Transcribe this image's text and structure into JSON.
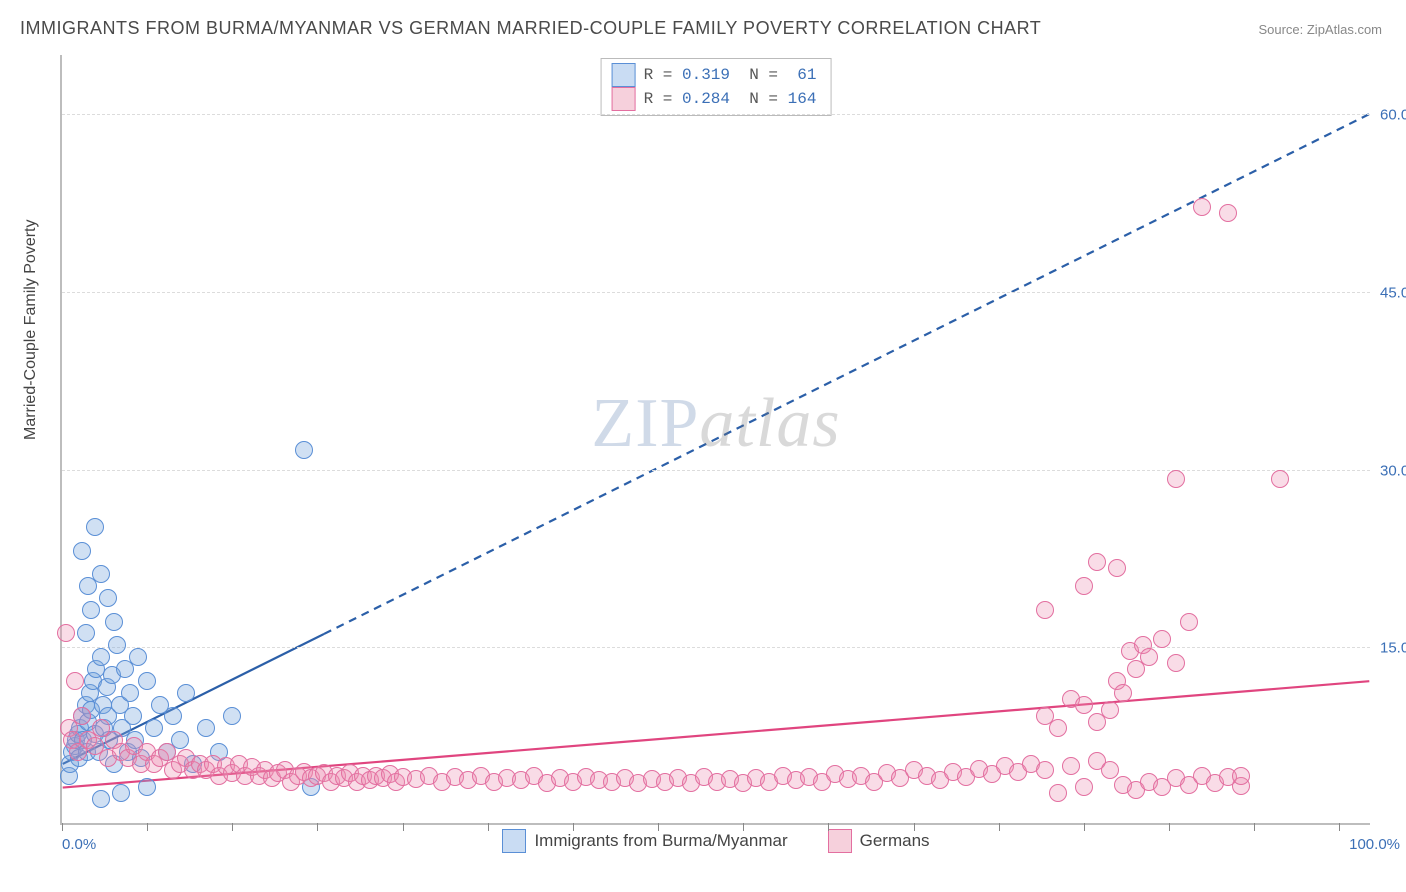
{
  "title": "IMMIGRANTS FROM BURMA/MYANMAR VS GERMAN MARRIED-COUPLE FAMILY POVERTY CORRELATION CHART",
  "source_label": "Source: ZipAtlas.com",
  "ylabel": "Married-Couple Family Poverty",
  "watermark_a": "ZIP",
  "watermark_b": "atlas",
  "chart": {
    "type": "scatter",
    "background_color": "#ffffff",
    "grid_color": "#dcdcdc",
    "axis_color": "#bdbdbd",
    "xlim": [
      0,
      100
    ],
    "ylim": [
      0,
      65
    ],
    "yticks": [
      15,
      30,
      45,
      60
    ],
    "ytick_labels": [
      "15.0%",
      "30.0%",
      "45.0%",
      "60.0%"
    ],
    "xtick_positions": [
      0,
      6.5,
      13,
      19.5,
      26,
      32.5,
      39,
      45.5,
      52,
      58.5,
      65,
      71.5,
      78,
      84.5,
      91,
      97.5
    ],
    "xtick_label_left": "0.0%",
    "xtick_label_right": "100.0%",
    "marker_radius": 9,
    "marker_border_width": 1,
    "legend_top": {
      "rows": [
        {
          "swatch_fill": "#c9dcf3",
          "swatch_border": "#5a8fd6",
          "r_label": "R = ",
          "r_value": "0.319",
          "n_label": "  N = ",
          "n_value": " 61",
          "value_color": "#3b6fb6"
        },
        {
          "swatch_fill": "#f6d0dc",
          "swatch_border": "#e36fa0",
          "r_label": "R = ",
          "r_value": "0.284",
          "n_label": "  N = ",
          "n_value": "164",
          "value_color": "#3b6fb6"
        }
      ]
    },
    "legend_bottom": [
      {
        "label": "Immigrants from Burma/Myanmar",
        "swatch_fill": "#c9dcf3",
        "swatch_border": "#5a8fd6"
      },
      {
        "label": "Germans",
        "swatch_fill": "#f6d0dc",
        "swatch_border": "#e36fa0"
      }
    ],
    "series": [
      {
        "name": "burma",
        "fill": "rgba(120,165,220,0.35)",
        "stroke": "#5a8fd6",
        "trend": {
          "color": "#2b5fa8",
          "width": 2.2,
          "solid_until_x": 20,
          "y_at_x0": 5,
          "y_at_x100": 60
        },
        "points": [
          [
            0.5,
            4
          ],
          [
            0.6,
            5
          ],
          [
            0.8,
            6
          ],
          [
            1.0,
            6.5
          ],
          [
            1.1,
            7
          ],
          [
            1.2,
            7.5
          ],
          [
            1.3,
            5.5
          ],
          [
            1.4,
            8
          ],
          [
            1.5,
            9
          ],
          [
            1.6,
            7
          ],
          [
            1.8,
            10
          ],
          [
            1.9,
            6
          ],
          [
            2.0,
            8.5
          ],
          [
            2.1,
            11
          ],
          [
            2.2,
            9.5
          ],
          [
            2.4,
            12
          ],
          [
            2.5,
            7.5
          ],
          [
            2.6,
            13
          ],
          [
            2.8,
            6
          ],
          [
            3.0,
            14
          ],
          [
            3.1,
            10
          ],
          [
            3.2,
            8
          ],
          [
            3.4,
            11.5
          ],
          [
            3.5,
            9
          ],
          [
            3.6,
            7
          ],
          [
            3.8,
            12.5
          ],
          [
            4.0,
            5
          ],
          [
            4.2,
            15
          ],
          [
            4.4,
            10
          ],
          [
            4.6,
            8
          ],
          [
            4.8,
            13
          ],
          [
            5.0,
            6
          ],
          [
            5.2,
            11
          ],
          [
            5.4,
            9
          ],
          [
            5.6,
            7
          ],
          [
            5.8,
            14
          ],
          [
            6.0,
            5.5
          ],
          [
            6.5,
            12
          ],
          [
            7.0,
            8
          ],
          [
            7.5,
            10
          ],
          [
            8.0,
            6
          ],
          [
            8.5,
            9
          ],
          [
            9.0,
            7
          ],
          [
            9.5,
            11
          ],
          [
            10.0,
            5
          ],
          [
            11.0,
            8
          ],
          [
            12.0,
            6
          ],
          [
            13.0,
            9
          ],
          [
            1.5,
            23
          ],
          [
            2.5,
            25
          ],
          [
            2.0,
            20
          ],
          [
            3.0,
            21
          ],
          [
            3.5,
            19
          ],
          [
            4.0,
            17
          ],
          [
            1.8,
            16
          ],
          [
            2.2,
            18
          ],
          [
            18.5,
            31.5
          ],
          [
            3.0,
            2
          ],
          [
            4.5,
            2.5
          ],
          [
            19.0,
            3
          ],
          [
            6.5,
            3
          ]
        ]
      },
      {
        "name": "germans",
        "fill": "rgba(235,140,175,0.30)",
        "stroke": "#e36fa0",
        "trend": {
          "color": "#e0457f",
          "width": 2.2,
          "y_at_x0": 3,
          "y_at_x100": 12
        },
        "points": [
          [
            0.3,
            16
          ],
          [
            0.5,
            8
          ],
          [
            0.8,
            7
          ],
          [
            1.0,
            12
          ],
          [
            1.2,
            6
          ],
          [
            1.5,
            9
          ],
          [
            2.0,
            7
          ],
          [
            2.5,
            6.5
          ],
          [
            3.0,
            8
          ],
          [
            3.5,
            5.5
          ],
          [
            4.0,
            7
          ],
          [
            4.5,
            6
          ],
          [
            5.0,
            5.5
          ],
          [
            5.5,
            6.5
          ],
          [
            6.0,
            5
          ],
          [
            6.5,
            6
          ],
          [
            7.0,
            5
          ],
          [
            7.5,
            5.5
          ],
          [
            8.0,
            6
          ],
          [
            8.5,
            4.5
          ],
          [
            9.0,
            5
          ],
          [
            9.5,
            5.5
          ],
          [
            10,
            4.5
          ],
          [
            10.5,
            5
          ],
          [
            11,
            4.5
          ],
          [
            11.5,
            5
          ],
          [
            12,
            4
          ],
          [
            12.5,
            4.8
          ],
          [
            13,
            4.2
          ],
          [
            13.5,
            5
          ],
          [
            14,
            4
          ],
          [
            14.5,
            4.7
          ],
          [
            15,
            4
          ],
          [
            15.5,
            4.5
          ],
          [
            16,
            3.8
          ],
          [
            16.5,
            4.2
          ],
          [
            17,
            4.5
          ],
          [
            17.5,
            3.5
          ],
          [
            18,
            4
          ],
          [
            18.5,
            4.3
          ],
          [
            19,
            3.8
          ],
          [
            19.5,
            4
          ],
          [
            20,
            4.2
          ],
          [
            20.5,
            3.5
          ],
          [
            21,
            4
          ],
          [
            21.5,
            3.8
          ],
          [
            22,
            4.2
          ],
          [
            22.5,
            3.5
          ],
          [
            23,
            4
          ],
          [
            23.5,
            3.6
          ],
          [
            24,
            4
          ],
          [
            24.5,
            3.8
          ],
          [
            25,
            4.1
          ],
          [
            25.5,
            3.5
          ],
          [
            26,
            3.9
          ],
          [
            27,
            3.7
          ],
          [
            28,
            4
          ],
          [
            29,
            3.5
          ],
          [
            30,
            3.9
          ],
          [
            31,
            3.6
          ],
          [
            32,
            4
          ],
          [
            33,
            3.5
          ],
          [
            34,
            3.8
          ],
          [
            35,
            3.6
          ],
          [
            36,
            4
          ],
          [
            37,
            3.4
          ],
          [
            38,
            3.8
          ],
          [
            39,
            3.5
          ],
          [
            40,
            3.9
          ],
          [
            41,
            3.6
          ],
          [
            42,
            3.5
          ],
          [
            43,
            3.8
          ],
          [
            44,
            3.4
          ],
          [
            45,
            3.7
          ],
          [
            46,
            3.5
          ],
          [
            47,
            3.8
          ],
          [
            48,
            3.4
          ],
          [
            49,
            3.9
          ],
          [
            50,
            3.5
          ],
          [
            51,
            3.7
          ],
          [
            52,
            3.4
          ],
          [
            53,
            3.8
          ],
          [
            54,
            3.5
          ],
          [
            55,
            4
          ],
          [
            56,
            3.6
          ],
          [
            57,
            3.9
          ],
          [
            58,
            3.5
          ],
          [
            59,
            4.1
          ],
          [
            60,
            3.7
          ],
          [
            61,
            4
          ],
          [
            62,
            3.5
          ],
          [
            63,
            4.2
          ],
          [
            64,
            3.8
          ],
          [
            65,
            4.5
          ],
          [
            66,
            4
          ],
          [
            67,
            3.6
          ],
          [
            68,
            4.3
          ],
          [
            69,
            3.9
          ],
          [
            70,
            4.6
          ],
          [
            71,
            4.1
          ],
          [
            72,
            4.8
          ],
          [
            73,
            4.3
          ],
          [
            74,
            5
          ],
          [
            75,
            4.5
          ],
          [
            76,
            2.5
          ],
          [
            77,
            4.8
          ],
          [
            78,
            3
          ],
          [
            79,
            5.2
          ],
          [
            80,
            4.5
          ],
          [
            81,
            3.2
          ],
          [
            82,
            2.8
          ],
          [
            83,
            3.5
          ],
          [
            84,
            3
          ],
          [
            85,
            3.8
          ],
          [
            86,
            3.2
          ],
          [
            87,
            4
          ],
          [
            88,
            3.4
          ],
          [
            89,
            3.9
          ],
          [
            90,
            3.1
          ],
          [
            75,
            9
          ],
          [
            76,
            8
          ],
          [
            77,
            10.5
          ],
          [
            78,
            10
          ],
          [
            79,
            8.5
          ],
          [
            80,
            9.5
          ],
          [
            80.5,
            12
          ],
          [
            81,
            11
          ],
          [
            81.5,
            14.5
          ],
          [
            82,
            13
          ],
          [
            82.5,
            15
          ],
          [
            83,
            14
          ],
          [
            84,
            15.5
          ],
          [
            85,
            13.5
          ],
          [
            86,
            17
          ],
          [
            75,
            18
          ],
          [
            78,
            20
          ],
          [
            79,
            22
          ],
          [
            80.5,
            21.5
          ],
          [
            85,
            29
          ],
          [
            93,
            29
          ],
          [
            87,
            52
          ],
          [
            89,
            51.5
          ],
          [
            90,
            4
          ]
        ]
      }
    ]
  }
}
